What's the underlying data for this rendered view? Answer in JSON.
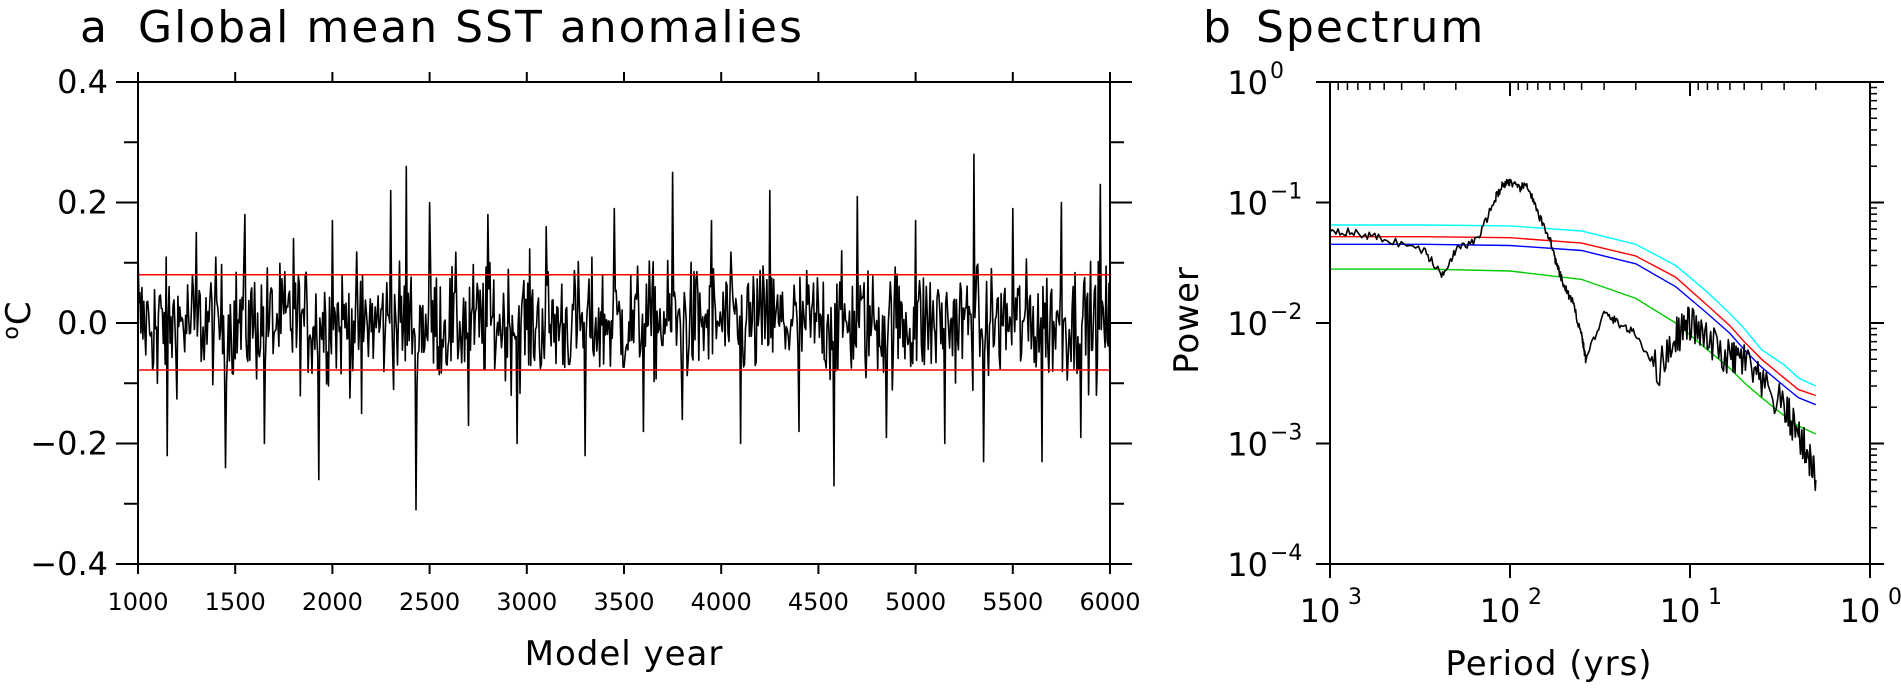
{
  "chart_data": [
    {
      "type": "line",
      "panel_letter": "a",
      "title": "Global mean SST anomalies",
      "xlabel": "Model year",
      "ylabel": "oC",
      "xlim": [
        1000,
        6000
      ],
      "ylim": [
        -0.4,
        0.4
      ],
      "xticks": [
        1000,
        1500,
        2000,
        2500,
        3000,
        3500,
        4000,
        4500,
        5000,
        5500,
        6000
      ],
      "xtick_labels": [
        "1000",
        "1500",
        "2000",
        "2500",
        "3000",
        "3500",
        "4000",
        "4500",
        "5000",
        "5500",
        "6000"
      ],
      "yticks": [
        -0.4,
        -0.2,
        0.0,
        0.2,
        0.4
      ],
      "ytick_labels": [
        "−0.4",
        "−0.2",
        "0.0",
        "0.2",
        "0.4"
      ],
      "grid": false,
      "series": [
        {
          "color": "#000000",
          "description": "annual global mean SST anomaly, noisy around 0 with std approx 0.08",
          "x": [
            1000,
            1100,
            1150,
            1300,
            1450,
            1550,
            1650,
            1800,
            1930,
            2000,
            2150,
            2300,
            2380,
            2430,
            2500,
            2700,
            2800,
            2950,
            3100,
            3300,
            3450,
            3600,
            3750,
            3800,
            3950,
            4100,
            4250,
            4400,
            4580,
            4700,
            4850,
            5000,
            5150,
            5300,
            5350,
            5500,
            5650,
            5750,
            5850,
            5950,
            6000
          ],
          "y": [
            0.12,
            -0.1,
            -0.22,
            0.15,
            -0.24,
            0.18,
            -0.2,
            0.14,
            -0.26,
            0.17,
            -0.15,
            0.22,
            0.26,
            -0.31,
            0.2,
            -0.17,
            0.18,
            -0.2,
            0.16,
            -0.22,
            0.19,
            -0.18,
            0.25,
            -0.16,
            0.17,
            -0.2,
            0.22,
            -0.18,
            -0.27,
            0.21,
            -0.19,
            0.17,
            -0.2,
            0.28,
            -0.23,
            0.19,
            -0.23,
            0.2,
            -0.19,
            0.23,
            -0.12
          ]
        },
        {
          "color": "#ff0000",
          "description": "upper reference line",
          "x": [
            1000,
            6000
          ],
          "y": [
            0.08,
            0.08
          ]
        },
        {
          "color": "#ff0000",
          "description": "lower reference line",
          "x": [
            1000,
            6000
          ],
          "y": [
            -0.078,
            -0.078
          ]
        }
      ]
    },
    {
      "type": "line",
      "panel_letter": "b",
      "title": "Spectrum",
      "xlabel": "Period (yrs)",
      "ylabel": "Power",
      "x_scale": "log",
      "x_reversed": true,
      "xlim": [
        1000,
        1
      ],
      "y_scale": "log",
      "ylim": [
        0.0001,
        1
      ],
      "xticks": [
        1000,
        100,
        10,
        1
      ],
      "xtick_labels": [
        {
          "base": "10",
          "exp": "3"
        },
        {
          "base": "10",
          "exp": "2"
        },
        {
          "base": "10",
          "exp": "1"
        },
        {
          "base": "10",
          "exp": "0"
        }
      ],
      "yticks": [
        1,
        0.1,
        0.01,
        0.001,
        0.0001
      ],
      "ytick_labels": [
        {
          "base": "10",
          "exp": "0"
        },
        {
          "base": "10",
          "exp": "−1"
        },
        {
          "base": "10",
          "exp": "−2"
        },
        {
          "base": "10",
          "exp": "−3"
        },
        {
          "base": "10",
          "exp": "−4"
        }
      ],
      "grid": false,
      "series": [
        {
          "color": "#000000",
          "description": "power spectrum",
          "x": [
            1000,
            700,
            500,
            300,
            240,
            200,
            150,
            120,
            110,
            100,
            90,
            80,
            70,
            60,
            55,
            50,
            45,
            40,
            38,
            30,
            25,
            20,
            15,
            12,
            10,
            8,
            6,
            5,
            4,
            3,
            2.5,
            2.2,
            2.0
          ],
          "y": [
            0.06,
            0.055,
            0.05,
            0.04,
            0.025,
            0.04,
            0.05,
            0.11,
            0.14,
            0.15,
            0.13,
            0.14,
            0.08,
            0.05,
            0.03,
            0.02,
            0.015,
            0.008,
            0.005,
            0.012,
            0.01,
            0.008,
            0.004,
            0.008,
            0.01,
            0.007,
            0.005,
            0.005,
            0.003,
            0.002,
            0.0012,
            0.0008,
            0.0005
          ]
        },
        {
          "color": "#00ffff",
          "description": "red-noise reference (cyan)",
          "x": [
            1000,
            300,
            100,
            40,
            20,
            12,
            8,
            6,
            5,
            4,
            3,
            2.5,
            2.0
          ],
          "y": [
            0.065,
            0.065,
            0.064,
            0.058,
            0.045,
            0.03,
            0.018,
            0.012,
            0.009,
            0.006,
            0.0045,
            0.0035,
            0.003
          ]
        },
        {
          "color": "#ff0000",
          "description": "red-noise reference (red)",
          "x": [
            1000,
            300,
            100,
            40,
            20,
            12,
            8,
            6,
            5,
            4,
            3,
            2.5,
            2.0
          ],
          "y": [
            0.052,
            0.052,
            0.051,
            0.046,
            0.036,
            0.024,
            0.014,
            0.0095,
            0.007,
            0.005,
            0.0035,
            0.0028,
            0.0025
          ]
        },
        {
          "color": "#0000ff",
          "description": "red-noise reference (blue)",
          "x": [
            1000,
            300,
            100,
            40,
            20,
            12,
            8,
            6,
            5,
            4,
            3,
            2.5,
            2.0
          ],
          "y": [
            0.045,
            0.045,
            0.044,
            0.04,
            0.031,
            0.02,
            0.012,
            0.0082,
            0.006,
            0.0043,
            0.003,
            0.0024,
            0.0021
          ]
        },
        {
          "color": "#00cc00",
          "description": "red-noise reference (green)",
          "x": [
            1000,
            300,
            100,
            40,
            20,
            12,
            8,
            6,
            5,
            4,
            3,
            2.5,
            2.0
          ],
          "y": [
            0.028,
            0.028,
            0.027,
            0.023,
            0.016,
            0.01,
            0.006,
            0.0042,
            0.0032,
            0.0024,
            0.0017,
            0.0014,
            0.0012
          ]
        }
      ]
    }
  ]
}
